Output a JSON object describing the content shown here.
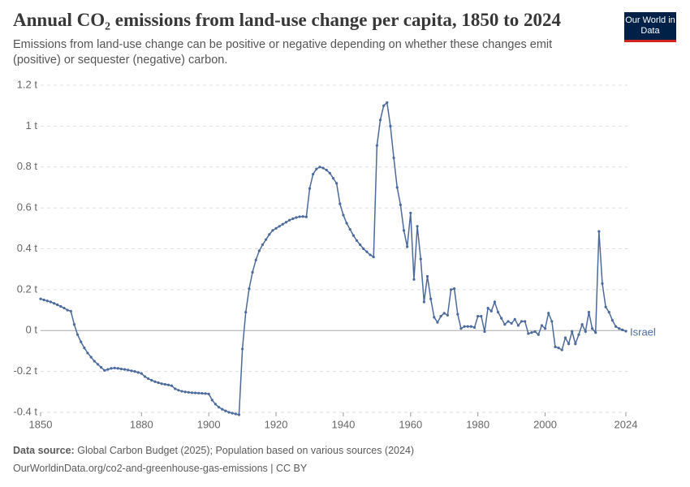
{
  "chart_data": {
    "type": "line",
    "title": "Annual CO₂ emissions from land-use change per capita, 1850 to 2024",
    "subtitle": "Emissions from land-use change can be positive or negative depending on whether these changes emit (positive) or sequester (negative) carbon.",
    "logo": "Our World in Data",
    "source_label": "Data source:",
    "source": "Global Carbon Budget (2025); Population based on various sources (2024)",
    "url": "OurWorldinData.org/co2-and-greenhouse-gas-emissions | CC BY",
    "x": [
      1850,
      1851,
      1852,
      1853,
      1854,
      1855,
      1856,
      1857,
      1858,
      1859,
      1860,
      1861,
      1862,
      1863,
      1864,
      1865,
      1866,
      1867,
      1868,
      1869,
      1870,
      1871,
      1872,
      1873,
      1874,
      1875,
      1876,
      1877,
      1878,
      1879,
      1880,
      1881,
      1882,
      1883,
      1884,
      1885,
      1886,
      1887,
      1888,
      1889,
      1890,
      1891,
      1892,
      1893,
      1894,
      1895,
      1896,
      1897,
      1898,
      1899,
      1900,
      1901,
      1902,
      1903,
      1904,
      1905,
      1906,
      1907,
      1908,
      1909,
      1910,
      1911,
      1912,
      1913,
      1914,
      1915,
      1916,
      1917,
      1918,
      1919,
      1920,
      1921,
      1922,
      1923,
      1924,
      1925,
      1926,
      1927,
      1928,
      1929,
      1930,
      1931,
      1932,
      1933,
      1934,
      1935,
      1936,
      1937,
      1938,
      1939,
      1940,
      1941,
      1942,
      1943,
      1944,
      1945,
      1946,
      1947,
      1948,
      1949,
      1950,
      1951,
      1952,
      1953,
      1954,
      1955,
      1956,
      1957,
      1958,
      1959,
      1960,
      1961,
      1962,
      1963,
      1964,
      1965,
      1966,
      1967,
      1968,
      1969,
      1970,
      1971,
      1972,
      1973,
      1974,
      1975,
      1976,
      1977,
      1978,
      1979,
      1980,
      1981,
      1982,
      1983,
      1984,
      1985,
      1986,
      1987,
      1988,
      1989,
      1990,
      1991,
      1992,
      1993,
      1994,
      1995,
      1996,
      1997,
      1998,
      1999,
      2000,
      2001,
      2002,
      2003,
      2004,
      2005,
      2006,
      2007,
      2008,
      2009,
      2010,
      2011,
      2012,
      2013,
      2014,
      2015,
      2016,
      2017,
      2018,
      2019,
      2020,
      2021,
      2022,
      2023,
      2024
    ],
    "series": [
      {
        "name": "Israel",
        "color": "#4c6a9c",
        "values": [
          0.155,
          0.15,
          0.145,
          0.14,
          0.133,
          0.126,
          0.118,
          0.11,
          0.1,
          0.095,
          0.03,
          -0.02,
          -0.055,
          -0.085,
          -0.11,
          -0.13,
          -0.15,
          -0.165,
          -0.18,
          -0.195,
          -0.19,
          -0.185,
          -0.183,
          -0.185,
          -0.188,
          -0.19,
          -0.193,
          -0.197,
          -0.2,
          -0.205,
          -0.21,
          -0.225,
          -0.235,
          -0.243,
          -0.25,
          -0.255,
          -0.26,
          -0.263,
          -0.266,
          -0.27,
          -0.285,
          -0.292,
          -0.297,
          -0.3,
          -0.302,
          -0.304,
          -0.305,
          -0.306,
          -0.307,
          -0.308,
          -0.31,
          -0.34,
          -0.36,
          -0.375,
          -0.385,
          -0.393,
          -0.4,
          -0.404,
          -0.408,
          -0.412,
          -0.09,
          0.09,
          0.205,
          0.285,
          0.345,
          0.39,
          0.42,
          0.445,
          0.47,
          0.49,
          0.5,
          0.51,
          0.52,
          0.53,
          0.54,
          0.547,
          0.553,
          0.557,
          0.558,
          0.556,
          0.695,
          0.765,
          0.79,
          0.8,
          0.795,
          0.785,
          0.77,
          0.745,
          0.72,
          0.62,
          0.565,
          0.525,
          0.495,
          0.465,
          0.44,
          0.42,
          0.4,
          0.385,
          0.37,
          0.36,
          0.905,
          1.03,
          1.1,
          1.115,
          1.0,
          0.845,
          0.7,
          0.615,
          0.49,
          0.41,
          0.575,
          0.25,
          0.51,
          0.35,
          0.14,
          0.265,
          0.155,
          0.065,
          0.04,
          0.07,
          0.085,
          0.075,
          0.2,
          0.205,
          0.08,
          0.01,
          0.02,
          0.02,
          0.02,
          0.015,
          0.07,
          0.07,
          -0.005,
          0.11,
          0.095,
          0.14,
          0.09,
          0.06,
          0.03,
          0.045,
          0.035,
          0.055,
          0.025,
          0.045,
          0.045,
          -0.015,
          -0.01,
          -0.005,
          -0.02,
          0.025,
          0.01,
          0.085,
          0.045,
          -0.08,
          -0.085,
          -0.095,
          -0.035,
          -0.065,
          -0.005,
          -0.065,
          -0.02,
          0.03,
          -0.005,
          0.09,
          0.01,
          -0.01,
          0.485,
          0.23,
          0.115,
          0.09,
          0.05,
          0.02,
          0.01,
          0.003,
          -0.003
        ]
      }
    ],
    "xlim": [
      1850,
      2024
    ],
    "xticks": [
      1850,
      1880,
      1900,
      1920,
      1940,
      1960,
      1980,
      2000,
      2024
    ],
    "ylim": [
      -0.4,
      1.2
    ],
    "yticks": [
      {
        "value": -0.4,
        "label": "-0.4 t"
      },
      {
        "value": -0.2,
        "label": "-0.2 t"
      },
      {
        "value": 0,
        "label": "0 t"
      },
      {
        "value": 0.2,
        "label": "0.2 t"
      },
      {
        "value": 0.4,
        "label": "0.4 t"
      },
      {
        "value": 0.6,
        "label": "0.6 t"
      },
      {
        "value": 0.8,
        "label": "0.8 t"
      },
      {
        "value": 1,
        "label": "1 t"
      },
      {
        "value": 1.2,
        "label": "1.2 t"
      }
    ],
    "grid": true
  }
}
